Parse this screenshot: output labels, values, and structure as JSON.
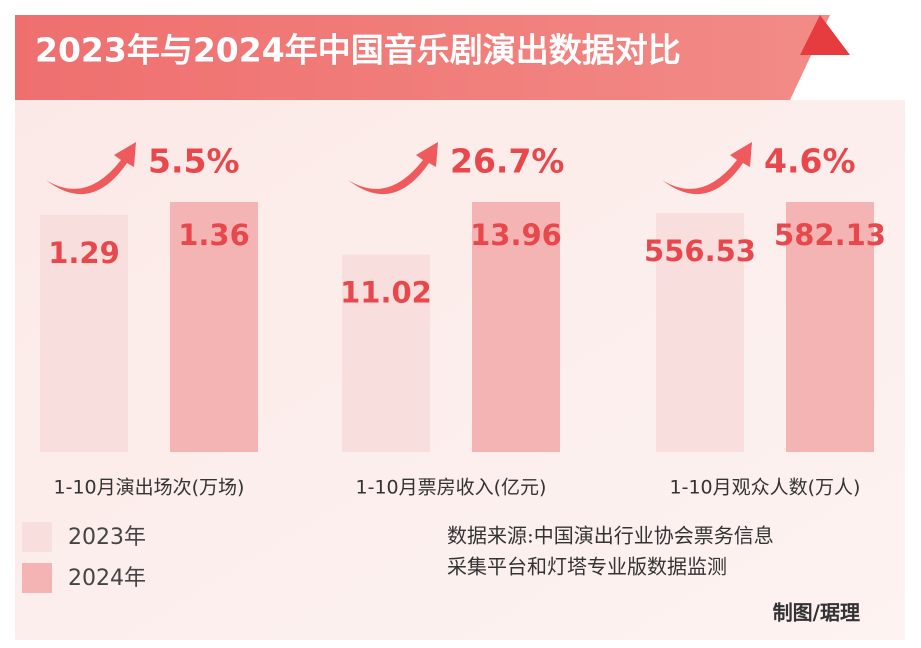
{
  "title": "2023年与2024年中国音乐剧演出数据对比",
  "chart_data": [
    {
      "type": "bar",
      "x_label": "1-10月演出场次(万场)",
      "change": "5.5%",
      "series": [
        {
          "name": "2023年",
          "color": "#f9dede",
          "values": [
            1.29
          ]
        },
        {
          "name": "2024年",
          "color": "#f5b4b4",
          "values": [
            1.36
          ]
        }
      ]
    },
    {
      "type": "bar",
      "x_label": "1-10月票房收入(亿元)",
      "change": "26.7%",
      "series": [
        {
          "name": "2023年",
          "color": "#f9dede",
          "values": [
            11.02
          ]
        },
        {
          "name": "2024年",
          "color": "#f5b4b4",
          "values": [
            13.96
          ]
        }
      ]
    },
    {
      "type": "bar",
      "x_label": "1-10月观众人数(万人)",
      "change": "4.6%",
      "series": [
        {
          "name": "2023年",
          "color": "#f9dede",
          "values": [
            556.53
          ]
        },
        {
          "name": "2024年",
          "color": "#f5b4b4",
          "values": [
            582.13
          ]
        }
      ]
    }
  ],
  "source": [
    "数据来源:中国演出行业协会票务信息",
    "采集平台和灯塔专业版数据监测"
  ],
  "credit": "制图/琚理"
}
